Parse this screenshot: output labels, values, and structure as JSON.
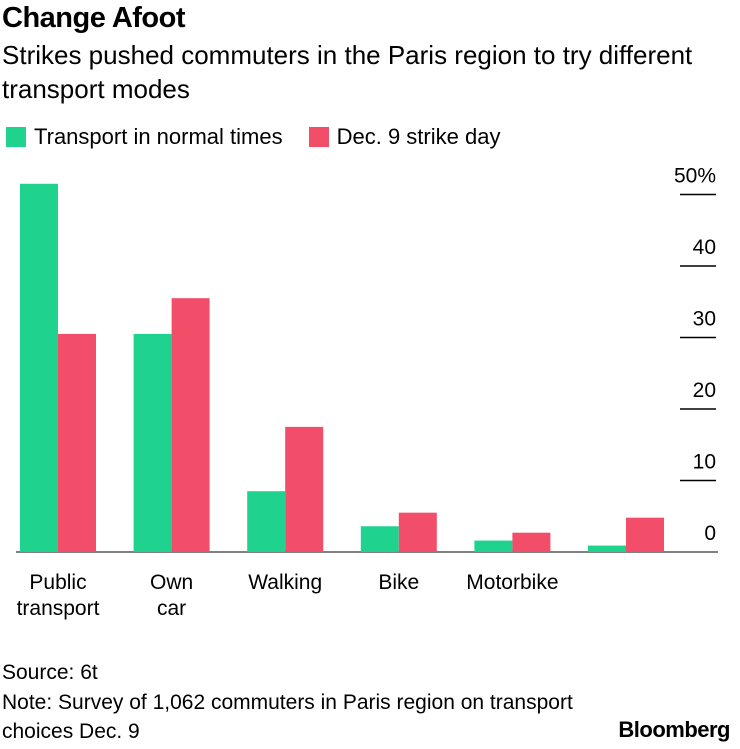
{
  "title": "Change Afoot",
  "subtitle": "Strikes pushed commuters in the Paris region to try different transport modes",
  "legend": [
    {
      "label": "Transport in normal times",
      "color": "#1fd38f"
    },
    {
      "label": "Dec. 9 strike day",
      "color": "#f24d69"
    }
  ],
  "chart_data": {
    "type": "bar",
    "categories": [
      "Public transport",
      "Own car",
      "Walking",
      "Bike",
      "Motorbike",
      ""
    ],
    "series": [
      {
        "name": "Transport in normal times",
        "color": "#1fd38f",
        "values": [
          51.5,
          30.5,
          8.5,
          3.6,
          1.6,
          0.9
        ]
      },
      {
        "name": "Dec. 9 strike day",
        "color": "#f24d69",
        "values": [
          30.5,
          35.5,
          17.5,
          5.5,
          2.7,
          4.8
        ]
      }
    ],
    "yticks": [
      "0",
      "10",
      "20",
      "30",
      "40",
      "50%"
    ],
    "ylim": [
      0,
      52
    ],
    "axis_side": "right",
    "grid": false
  },
  "footer": {
    "source": "Source: 6t",
    "note": "Note: Survey of 1,062 commuters in Paris region on transport choices Dec. 9"
  },
  "logo": "Bloomberg"
}
